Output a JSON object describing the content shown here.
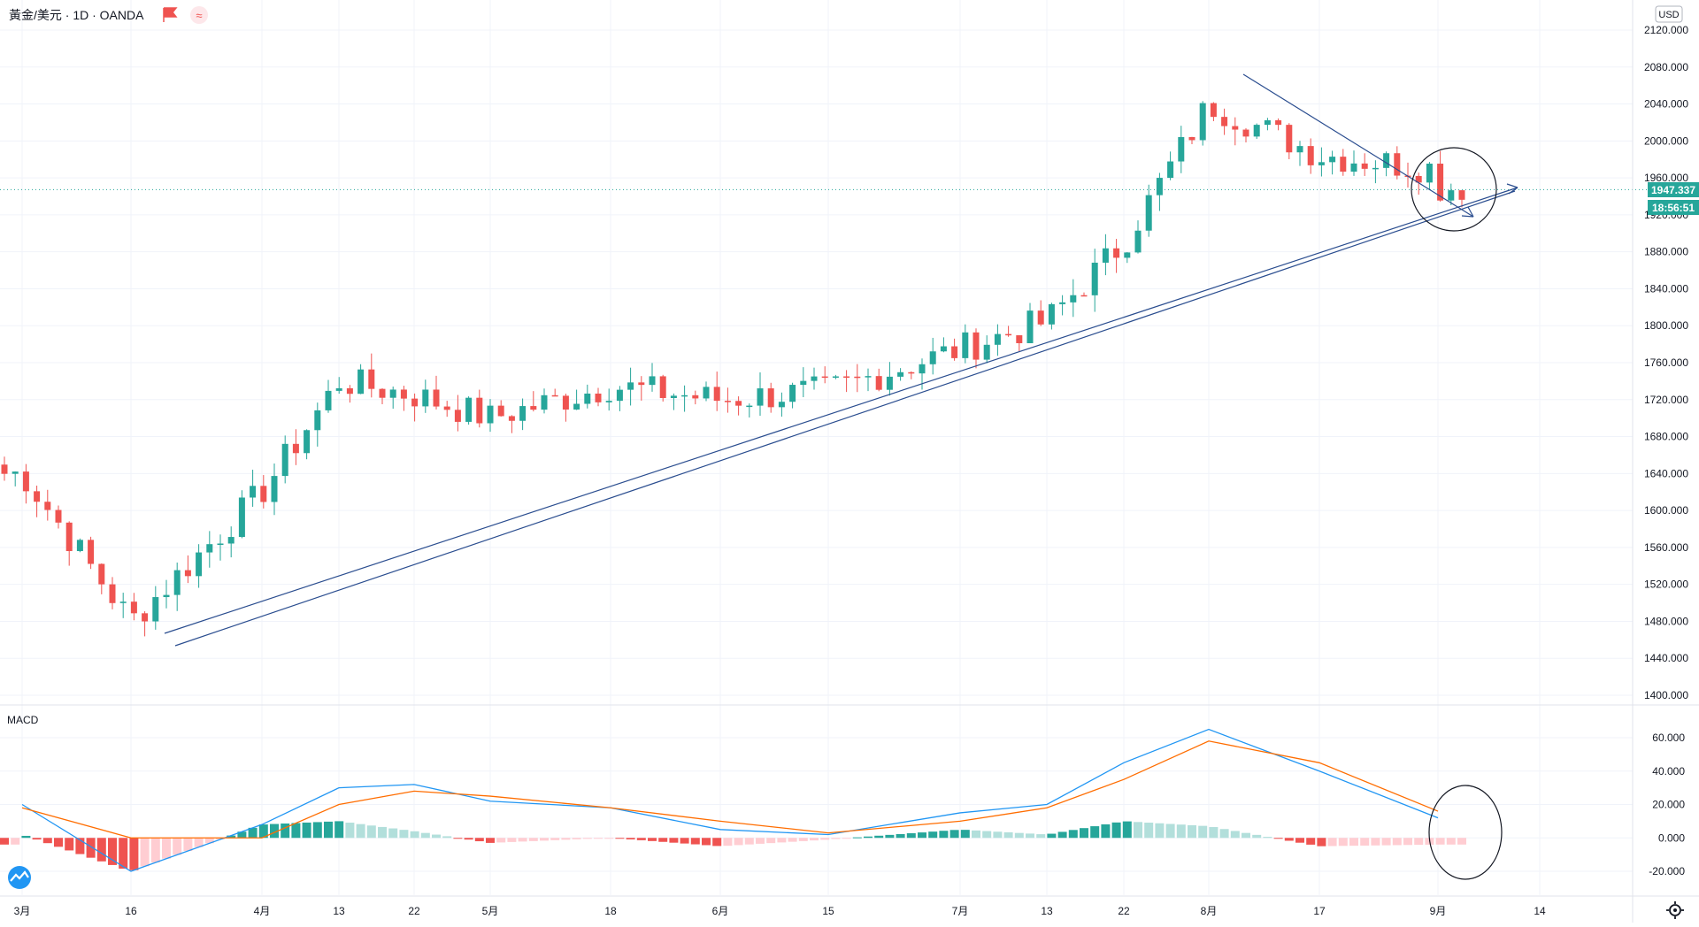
{
  "header": {
    "symbol": "黃金/美元 · 1D · OANDA"
  },
  "currency_label": "USD",
  "indicator_label": "MACD",
  "price_tag": {
    "price": "1947.337",
    "countdown": "18:56:51"
  },
  "colors": {
    "up": "#26a69a",
    "down": "#ef5350",
    "macd_line": "#2196f3",
    "signal_line": "#ff6d00",
    "hist_up_strong": "#26a69a",
    "hist_up_weak": "#b2dfdb",
    "hist_down_strong": "#ef5350",
    "hist_down_weak": "#ffcdd2",
    "trendline": "#2a4d8f"
  },
  "icons": {
    "logo": "tradingview-logo-icon",
    "settings": "gear-icon",
    "flag": "red-flag-icon",
    "compare": "compare-icon"
  },
  "chart_data": [
    {
      "type": "candlestick",
      "title": "黃金/美元 · 1D · OANDA",
      "y_axis": {
        "label": "USD",
        "ticks": [
          "2120.000",
          "2080.000",
          "2040.000",
          "2000.000",
          "1960.000",
          "1920.000",
          "1880.000",
          "1840.000",
          "1800.000",
          "1760.000",
          "1720.000",
          "1680.000",
          "1640.000",
          "1600.000",
          "1560.000",
          "1520.000",
          "1480.000",
          "1440.000",
          "1400.000"
        ],
        "range": [
          1400,
          2120
        ]
      },
      "x_axis": {
        "ticks": [
          "3月",
          "16",
          "4月",
          "13",
          "22",
          "5月",
          "18",
          "6月",
          "15",
          "7月",
          "13",
          "22",
          "8月",
          "17",
          "9月",
          "14"
        ]
      },
      "current_price": 1947.337,
      "price_points": [
        {
          "x": "3月",
          "y": 1640
        },
        {
          "x": "16",
          "y": 1480
        },
        {
          "x": "4月",
          "y": 1620
        },
        {
          "x": "13",
          "y": 1740
        },
        {
          "x": "22",
          "y": 1725
        },
        {
          "x": "5月",
          "y": 1700
        },
        {
          "x": "18",
          "y": 1735
        },
        {
          "x": "6月",
          "y": 1720
        },
        {
          "x": "15",
          "y": 1730
        },
        {
          "x": "7月",
          "y": 1775
        },
        {
          "x": "13",
          "y": 1805
        },
        {
          "x": "22",
          "y": 1890
        },
        {
          "x": "8月",
          "y": 2040
        },
        {
          "x": "17",
          "y": 1985
        },
        {
          "x": "9月",
          "y": 1970
        }
      ],
      "annotations": [
        "ascending trendline",
        "descending trendline",
        "circle"
      ]
    },
    {
      "type": "line",
      "title": "MACD",
      "y_axis": {
        "ticks": [
          "60.000",
          "40.000",
          "20.000",
          "0.000",
          "-20.000"
        ],
        "range": [
          -30,
          70
        ]
      },
      "series_values": {
        "macd": [
          {
            "x": "3月",
            "y": 20
          },
          {
            "x": "16",
            "y": -20
          },
          {
            "x": "4月",
            "y": 8
          },
          {
            "x": "13",
            "y": 30
          },
          {
            "x": "22",
            "y": 32
          },
          {
            "x": "5月",
            "y": 22
          },
          {
            "x": "18",
            "y": 18
          },
          {
            "x": "6月",
            "y": 5
          },
          {
            "x": "15",
            "y": 2
          },
          {
            "x": "7月",
            "y": 15
          },
          {
            "x": "13",
            "y": 20
          },
          {
            "x": "22",
            "y": 45
          },
          {
            "x": "8月",
            "y": 65
          },
          {
            "x": "17",
            "y": 40
          },
          {
            "x": "9月",
            "y": 12
          }
        ],
        "signal": [
          {
            "x": "3月",
            "y": 18
          },
          {
            "x": "16",
            "y": 0
          },
          {
            "x": "4月",
            "y": 0
          },
          {
            "x": "13",
            "y": 20
          },
          {
            "x": "22",
            "y": 28
          },
          {
            "x": "5月",
            "y": 25
          },
          {
            "x": "18",
            "y": 18
          },
          {
            "x": "6月",
            "y": 10
          },
          {
            "x": "15",
            "y": 3
          },
          {
            "x": "7月",
            "y": 10
          },
          {
            "x": "13",
            "y": 18
          },
          {
            "x": "22",
            "y": 35
          },
          {
            "x": "8月",
            "y": 58
          },
          {
            "x": "17",
            "y": 45
          },
          {
            "x": "9月",
            "y": 16
          }
        ]
      }
    }
  ]
}
